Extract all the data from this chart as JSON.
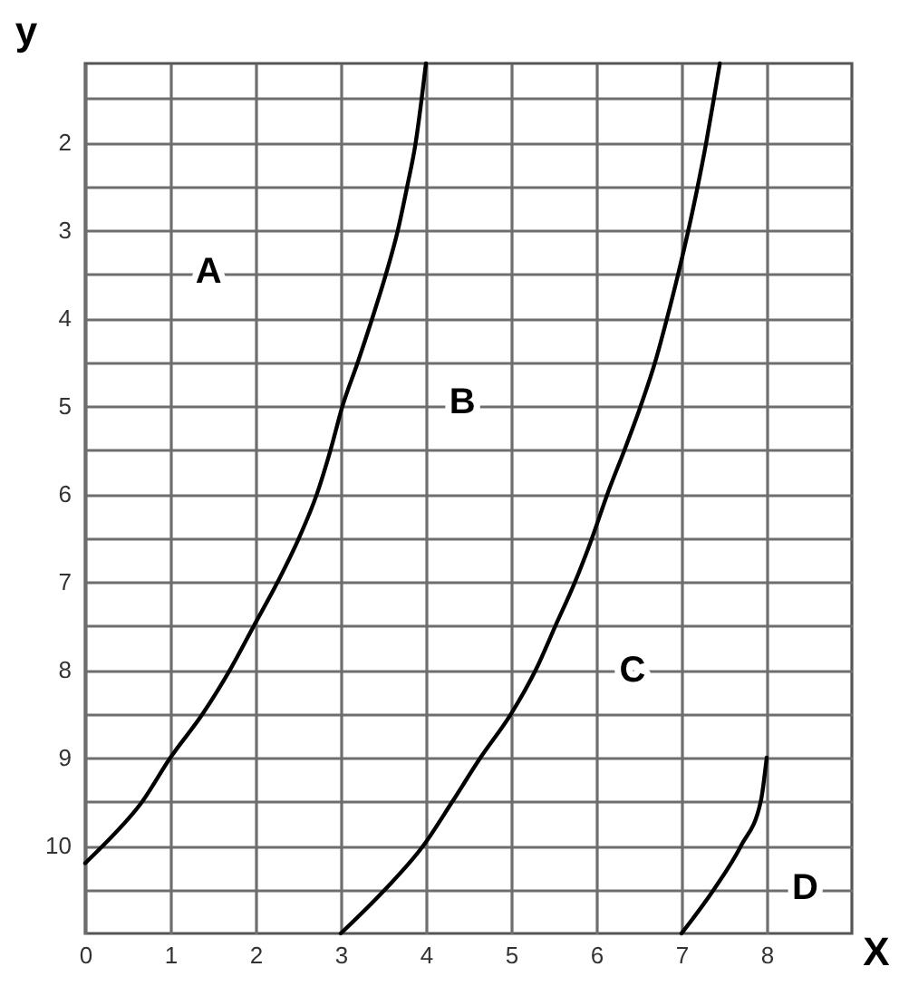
{
  "chart_data": {
    "type": "line",
    "xlabel": "X",
    "ylabel": "y",
    "xlim": [
      0,
      9
    ],
    "xticks": [
      0,
      1,
      2,
      3,
      4,
      5,
      6,
      7,
      8
    ],
    "ylim": [
      11,
      1.1
    ],
    "yticks": [
      {
        "value": 1.5,
        "label": null
      },
      2,
      {
        "value": 2.5,
        "label": null
      },
      3,
      {
        "value": 3.5,
        "label": null
      },
      4,
      {
        "value": 4.5,
        "label": null
      },
      5,
      {
        "value": 5.5,
        "label": null
      },
      6,
      {
        "value": 6.5,
        "label": null
      },
      7,
      {
        "value": 7.5,
        "label": null
      },
      8,
      {
        "value": 8.5,
        "label": null
      },
      9,
      {
        "value": 9.5,
        "label": null
      },
      10,
      {
        "value": 10.5,
        "label": null
      }
    ],
    "grid": true,
    "series": [
      {
        "color": "#000000",
        "x": [
          0,
          0.21,
          0.67,
          1.0,
          1.38,
          1.7,
          1.98,
          2.26,
          2.51,
          2.72,
          2.88,
          3.02,
          3.2,
          3.37,
          3.53,
          3.67,
          3.78,
          3.88,
          3.95,
          4.0
        ],
        "values": [
          10.2,
          10,
          9.5,
          9,
          8.5,
          8,
          7.5,
          7,
          6.5,
          6,
          5.5,
          5,
          4.5,
          4,
          3.5,
          3,
          2.5,
          2,
          1.5,
          1.1
        ]
      },
      {
        "color": "#000000",
        "x": [
          3.0,
          3.52,
          3.97,
          4.31,
          4.64,
          5.0,
          5.29,
          5.52,
          5.75,
          5.95,
          6.13,
          6.33,
          6.52,
          6.69,
          6.83,
          6.96,
          7.08,
          7.19,
          7.29,
          7.38,
          7.45
        ],
        "values": [
          11,
          10.5,
          10,
          9.5,
          9,
          8.5,
          8,
          7.5,
          7,
          6.5,
          6,
          5.5,
          5,
          4.5,
          4,
          3.5,
          3,
          2.5,
          2,
          1.5,
          1.1
        ]
      },
      {
        "color": "#000000",
        "x": [
          7.0,
          7.38,
          7.7,
          7.93,
          8.0
        ],
        "values": [
          11,
          10.5,
          10,
          9.5,
          9.0
        ]
      }
    ],
    "annotations": [
      "A",
      "B",
      "C",
      "D"
    ]
  }
}
